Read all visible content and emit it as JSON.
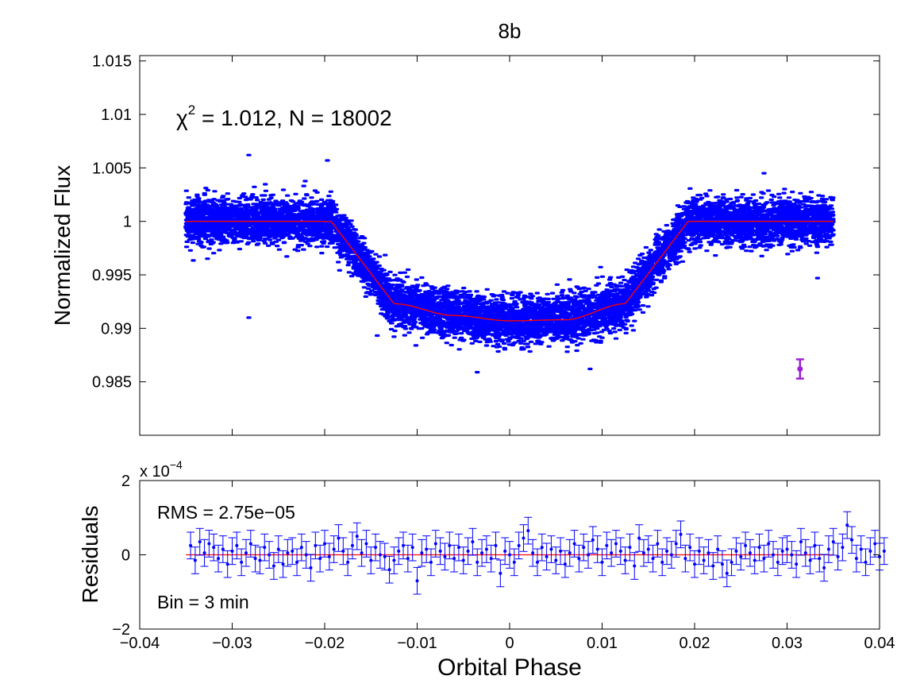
{
  "chart_data": [
    {
      "type": "scatter",
      "title": "8b",
      "xlabel": "",
      "ylabel": "Normalized Flux",
      "xlim": [
        -0.04,
        0.04
      ],
      "ylim": [
        0.98,
        1.0155
      ],
      "xticks": [
        -0.03,
        -0.02,
        -0.01,
        0,
        0.01,
        0.02,
        0.03
      ],
      "yticks": [
        0.985,
        0.99,
        0.995,
        1,
        1.005,
        1.01,
        1.015
      ],
      "ytick_labels": [
        "0.985",
        "0.99",
        "0.995",
        "1",
        "1.005",
        "1.01",
        "1.015"
      ],
      "annotation": {
        "chi_symbol": "χ",
        "chi_exp": "2",
        "text": " = 1.012, N = 18002"
      },
      "data_scatter": {
        "name": "Data",
        "color": "#0000ff",
        "n_points": 18002,
        "x_range": [
          -0.035,
          0.035
        ]
      },
      "model": {
        "name": "Transit model",
        "color": "#ff0000",
        "x": [
          -0.035,
          -0.0193,
          -0.0125,
          -0.006,
          0,
          0.006,
          0.0125,
          0.0193,
          0.035
        ],
        "y": [
          1.0,
          1.0,
          0.9923,
          0.9912,
          0.9907,
          0.9908,
          0.9923,
          1.0,
          1.0
        ]
      },
      "error_bar_marker": {
        "color": "#9b1fd6",
        "x": 0.0314,
        "y": 0.9862,
        "err": 0.0009
      }
    },
    {
      "type": "scatter",
      "title": "",
      "xlabel": "Orbital Phase",
      "ylabel": "Residuals",
      "xlim": [
        -0.04,
        0.04
      ],
      "ylim": [
        -2,
        2
      ],
      "y_multiplier": "x 10",
      "y_multiplier_exp": "−4",
      "xticks": [
        -0.04,
        -0.03,
        -0.02,
        -0.01,
        0,
        0.01,
        0.02,
        0.03,
        0.04
      ],
      "xtick_labels": [
        "−0.04",
        "−0.03",
        "−0.02",
        "−0.01",
        "0",
        "0.01",
        "0.02",
        "0.03",
        "0.04"
      ],
      "yticks": [
        -2,
        0,
        2
      ],
      "ytick_labels": [
        "−2",
        "0",
        "2"
      ],
      "rms_label": "RMS = 2.75e−05",
      "bin_label": "Bin = 3 min",
      "zero_line_color": "#ff0000",
      "series": [
        {
          "name": "Binned residuals",
          "color": "#0000ff",
          "x_start": -0.0345,
          "x_step": 0.0005,
          "y_err": 0.36,
          "values": [
            0.25,
            -0.15,
            0.35,
            0.05,
            0.3,
            0.2,
            -0.1,
            0.15,
            -0.25,
            0.1,
            0.25,
            -0.2,
            0.05,
            0.3,
            -0.1,
            -0.15,
            0.2,
            0.0,
            -0.3,
            0.15,
            -0.25,
            0.05,
            0.1,
            -0.2,
            0.2,
            0.0,
            -0.35,
            0.25,
            -0.1,
            0.3,
            -0.05,
            0.15,
            0.45,
            0.1,
            -0.2,
            0.25,
            0.5,
            0.05,
            0.3,
            -0.15,
            0.2,
            0.0,
            -0.05,
            -0.4,
            -0.15,
            0.1,
            0.25,
            -0.1,
            0.2,
            -0.7,
            0.05,
            0.15,
            -0.2,
            0.3,
            0.1,
            -0.05,
            0.25,
            -0.1,
            0.2,
            -0.15,
            0.1,
            0.35,
            -0.2,
            0.05,
            0.15,
            -0.1,
            0.25,
            -0.5,
            0.1,
            0.0,
            -0.2,
            0.25,
            0.45,
            0.65,
            0.05,
            -0.2,
            0.2,
            -0.05,
            0.15,
            -0.15,
            0.1,
            -0.25,
            0.05,
            0.3,
            -0.1,
            0.2,
            0.0,
            0.4,
            0.15,
            -0.2,
            0.25,
            0.05,
            0.3,
            0.1,
            -0.15,
            0.2,
            -0.3,
            0.45,
            0.05,
            0.15,
            -0.1,
            0.3,
            -0.2,
            0.1,
            0.0,
            0.3,
            0.55,
            -0.1,
            0.2,
            -0.25,
            0.1,
            -0.15,
            0.05,
            -0.3,
            0.15,
            -0.25,
            -0.5,
            -0.2,
            0.1,
            -0.05,
            0.25,
            0.05,
            -0.15,
            0.2,
            -0.1,
            0.3,
            0.0,
            -0.2,
            0.1,
            0.15,
            0.0,
            -0.25,
            0.35,
            0.05,
            -0.15,
            0.25,
            -0.1,
            -0.35,
            0.15,
            0.35,
            -0.05,
            0.2,
            0.8,
            0.4,
            -0.1,
            0.15,
            -0.2,
            0.1,
            0.3,
            -0.05,
            0.1
          ]
        }
      ]
    }
  ]
}
